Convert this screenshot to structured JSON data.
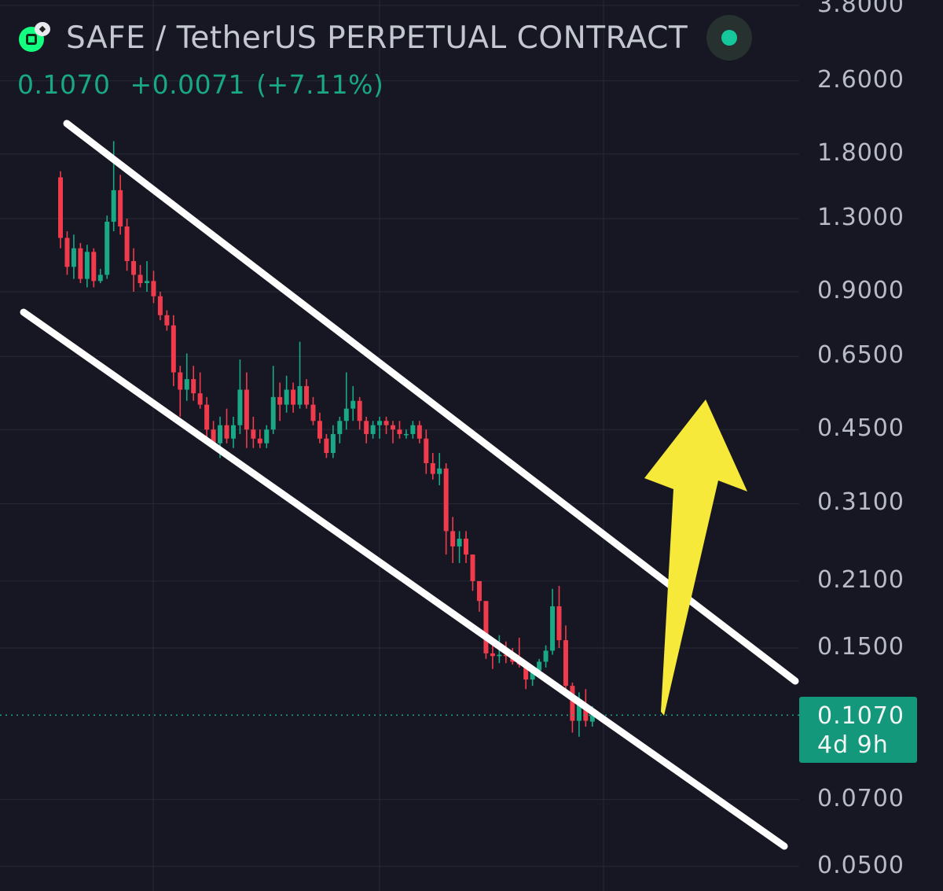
{
  "header": {
    "pair_title": "SAFE / TetherUS PERPETUAL CONTRACT",
    "last_price": "0.1070",
    "change_abs": "+0.0071",
    "change_pct": "(+7.11%)"
  },
  "price_tag": {
    "price": "0.1070",
    "countdown": "4d 9h"
  },
  "colors": {
    "background": "#161722",
    "up": "#1aa886",
    "down": "#ef3b4c",
    "channel": "#ffffff",
    "arrow": "#f6e93a",
    "grid": "#252836"
  },
  "icons": [
    "safe-coin-icon",
    "live-status-icon",
    "up-arrow-icon"
  ],
  "chart_data": {
    "type": "candlestick",
    "y_scale": "log",
    "ylim": [
      0.05,
      3.8
    ],
    "y_ticks": [
      "3.8000",
      "2.6000",
      "1.8000",
      "1.3000",
      "0.9000",
      "0.6500",
      "0.4500",
      "0.3100",
      "0.2100",
      "0.1500",
      "0.1070",
      "0.0700",
      "0.0500"
    ],
    "y_tick_values": [
      3.8,
      2.6,
      1.8,
      1.3,
      0.9,
      0.65,
      0.45,
      0.31,
      0.21,
      0.15,
      0.107,
      0.07,
      0.05
    ],
    "current_price": 0.107,
    "candles": [
      [
        1.6,
        1.65,
        1.12,
        1.18
      ],
      [
        1.18,
        1.22,
        0.98,
        1.02
      ],
      [
        1.02,
        1.2,
        0.96,
        1.12
      ],
      [
        1.12,
        1.15,
        0.94,
        0.96
      ],
      [
        0.96,
        1.14,
        0.92,
        1.1
      ],
      [
        1.1,
        1.12,
        0.92,
        0.95
      ],
      [
        0.95,
        1.01,
        0.94,
        0.98
      ],
      [
        0.98,
        1.32,
        0.96,
        1.28
      ],
      [
        1.28,
        1.92,
        1.22,
        1.5
      ],
      [
        1.5,
        1.62,
        1.2,
        1.25
      ],
      [
        1.25,
        1.3,
        1.0,
        1.05
      ],
      [
        1.05,
        1.12,
        0.9,
        0.98
      ],
      [
        0.98,
        1.03,
        0.92,
        0.94
      ],
      [
        0.94,
        1.05,
        0.9,
        0.95
      ],
      [
        0.95,
        1.0,
        0.85,
        0.88
      ],
      [
        0.88,
        0.9,
        0.78,
        0.8
      ],
      [
        0.8,
        0.82,
        0.74,
        0.76
      ],
      [
        0.76,
        0.8,
        0.56,
        0.6
      ],
      [
        0.6,
        0.62,
        0.48,
        0.55
      ],
      [
        0.55,
        0.66,
        0.52,
        0.58
      ],
      [
        0.58,
        0.62,
        0.52,
        0.54
      ],
      [
        0.54,
        0.6,
        0.5,
        0.51
      ],
      [
        0.51,
        0.53,
        0.43,
        0.45
      ],
      [
        0.45,
        0.47,
        0.41,
        0.42
      ],
      [
        0.42,
        0.48,
        0.39,
        0.46
      ],
      [
        0.46,
        0.5,
        0.42,
        0.43
      ],
      [
        0.43,
        0.48,
        0.41,
        0.46
      ],
      [
        0.46,
        0.64,
        0.44,
        0.55
      ],
      [
        0.55,
        0.6,
        0.41,
        0.45
      ],
      [
        0.45,
        0.48,
        0.41,
        0.43
      ],
      [
        0.43,
        0.45,
        0.41,
        0.42
      ],
      [
        0.42,
        0.46,
        0.41,
        0.45
      ],
      [
        0.45,
        0.62,
        0.44,
        0.53
      ],
      [
        0.53,
        0.57,
        0.47,
        0.51
      ],
      [
        0.51,
        0.59,
        0.49,
        0.55
      ],
      [
        0.55,
        0.57,
        0.49,
        0.51
      ],
      [
        0.51,
        0.7,
        0.5,
        0.56
      ],
      [
        0.56,
        0.58,
        0.5,
        0.51
      ],
      [
        0.51,
        0.53,
        0.46,
        0.47
      ],
      [
        0.47,
        0.49,
        0.42,
        0.43
      ],
      [
        0.43,
        0.44,
        0.39,
        0.4
      ],
      [
        0.4,
        0.46,
        0.39,
        0.44
      ],
      [
        0.44,
        0.48,
        0.42,
        0.47
      ],
      [
        0.47,
        0.6,
        0.45,
        0.5
      ],
      [
        0.5,
        0.56,
        0.47,
        0.52
      ],
      [
        0.52,
        0.53,
        0.45,
        0.47
      ],
      [
        0.47,
        0.48,
        0.42,
        0.44
      ],
      [
        0.44,
        0.47,
        0.43,
        0.46
      ],
      [
        0.46,
        0.48,
        0.43,
        0.47
      ],
      [
        0.47,
        0.48,
        0.44,
        0.46
      ],
      [
        0.46,
        0.47,
        0.42,
        0.45
      ],
      [
        0.45,
        0.47,
        0.43,
        0.44
      ],
      [
        0.44,
        0.45,
        0.43,
        0.44
      ],
      [
        0.44,
        0.47,
        0.43,
        0.46
      ],
      [
        0.46,
        0.47,
        0.42,
        0.43
      ],
      [
        0.43,
        0.45,
        0.36,
        0.38
      ],
      [
        0.38,
        0.4,
        0.35,
        0.36
      ],
      [
        0.36,
        0.4,
        0.34,
        0.37
      ],
      [
        0.37,
        0.38,
        0.24,
        0.27
      ],
      [
        0.27,
        0.29,
        0.23,
        0.25
      ],
      [
        0.25,
        0.27,
        0.23,
        0.26
      ],
      [
        0.26,
        0.27,
        0.23,
        0.24
      ],
      [
        0.24,
        0.24,
        0.2,
        0.21
      ],
      [
        0.21,
        0.21,
        0.18,
        0.19
      ],
      [
        0.19,
        0.19,
        0.142,
        0.146
      ],
      [
        0.146,
        0.152,
        0.135,
        0.144
      ],
      [
        0.144,
        0.16,
        0.139,
        0.145
      ],
      [
        0.145,
        0.155,
        0.139,
        0.144
      ],
      [
        0.144,
        0.15,
        0.138,
        0.14
      ],
      [
        0.14,
        0.158,
        0.136,
        0.138
      ],
      [
        0.138,
        0.14,
        0.122,
        0.128
      ],
      [
        0.128,
        0.136,
        0.124,
        0.134
      ],
      [
        0.134,
        0.142,
        0.13,
        0.14
      ],
      [
        0.14,
        0.152,
        0.136,
        0.148
      ],
      [
        0.148,
        0.202,
        0.145,
        0.185
      ],
      [
        0.185,
        0.205,
        0.15,
        0.156
      ],
      [
        0.156,
        0.168,
        0.12,
        0.124
      ],
      [
        0.124,
        0.126,
        0.098,
        0.104
      ],
      [
        0.104,
        0.12,
        0.096,
        0.113
      ],
      [
        0.113,
        0.122,
        0.101,
        0.104
      ],
      [
        0.1036,
        0.112,
        0.101,
        0.107
      ]
    ]
  }
}
